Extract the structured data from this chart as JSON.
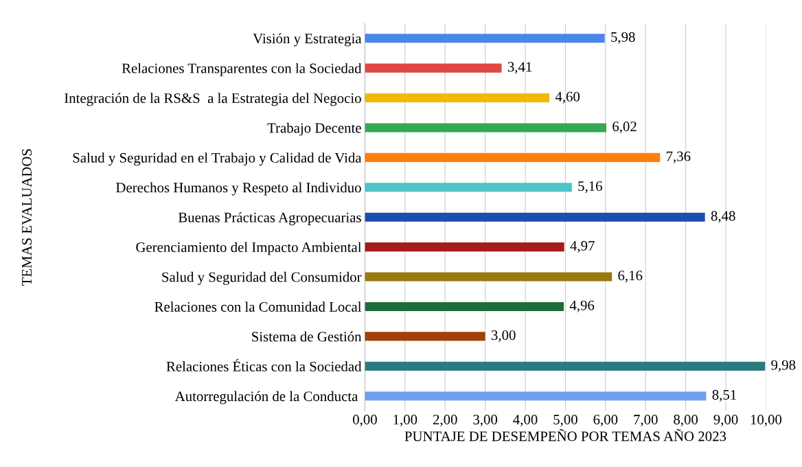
{
  "chart_data": {
    "type": "bar",
    "orientation": "horizontal",
    "xlabel": "PUNTAJE DE DESEMPEÑO POR TEMAS AÑO 2023",
    "ylabel": "TEMAS EVALUADOS",
    "categories": [
      "Visión y Estrategia",
      "Relaciones Transparentes con la Sociedad",
      "Integración de la RS&S  a la Estrategia del Negocio",
      "Trabajo Decente",
      "Salud y Seguridad en el Trabajo y Calidad de Vida",
      "Derechos Humanos y Respeto al Individuo",
      "Buenas Prácticas Agropecuarias",
      "Gerenciamiento del Impacto Ambiental",
      "Salud y Seguridad del Consumidor",
      "Relaciones con la Comunidad Local",
      "Sistema de Gestión",
      "Relaciones Éticas con la Sociedad",
      "Autorregulación de la Conducta "
    ],
    "values": [
      5.98,
      3.41,
      4.6,
      6.02,
      7.36,
      5.16,
      8.48,
      4.97,
      6.16,
      4.96,
      3.0,
      9.98,
      8.51
    ],
    "value_labels": [
      "5,98",
      "3,41",
      "4,60",
      "6,02",
      "7,36",
      "5,16",
      "8,48",
      "4,97",
      "6,16",
      "4,96",
      "3,00",
      "9,98",
      "8,51"
    ],
    "colors": [
      "#4a86e8",
      "#e04848",
      "#f5b800",
      "#34a853",
      "#ff7f0e",
      "#4cc4c9",
      "#1a4fb0",
      "#a61c1c",
      "#9a7a10",
      "#1f6b3a",
      "#a0400a",
      "#2a7a80",
      "#6ea0f0"
    ],
    "xlim": [
      0,
      10
    ],
    "xticks": [
      {
        "value": 0,
        "label": "0,00"
      },
      {
        "value": 1,
        "label": "1,00"
      },
      {
        "value": 2,
        "label": "2,00"
      },
      {
        "value": 3,
        "label": "3,00"
      },
      {
        "value": 4,
        "label": "4,00"
      },
      {
        "value": 5,
        "label": "5,00"
      },
      {
        "value": 6,
        "label": "6,00"
      },
      {
        "value": 7,
        "label": "7,00"
      },
      {
        "value": 8,
        "label": "8,00"
      },
      {
        "value": 9,
        "label": "9,00"
      },
      {
        "value": 10,
        "label": "10,00"
      }
    ],
    "grid": "x"
  }
}
